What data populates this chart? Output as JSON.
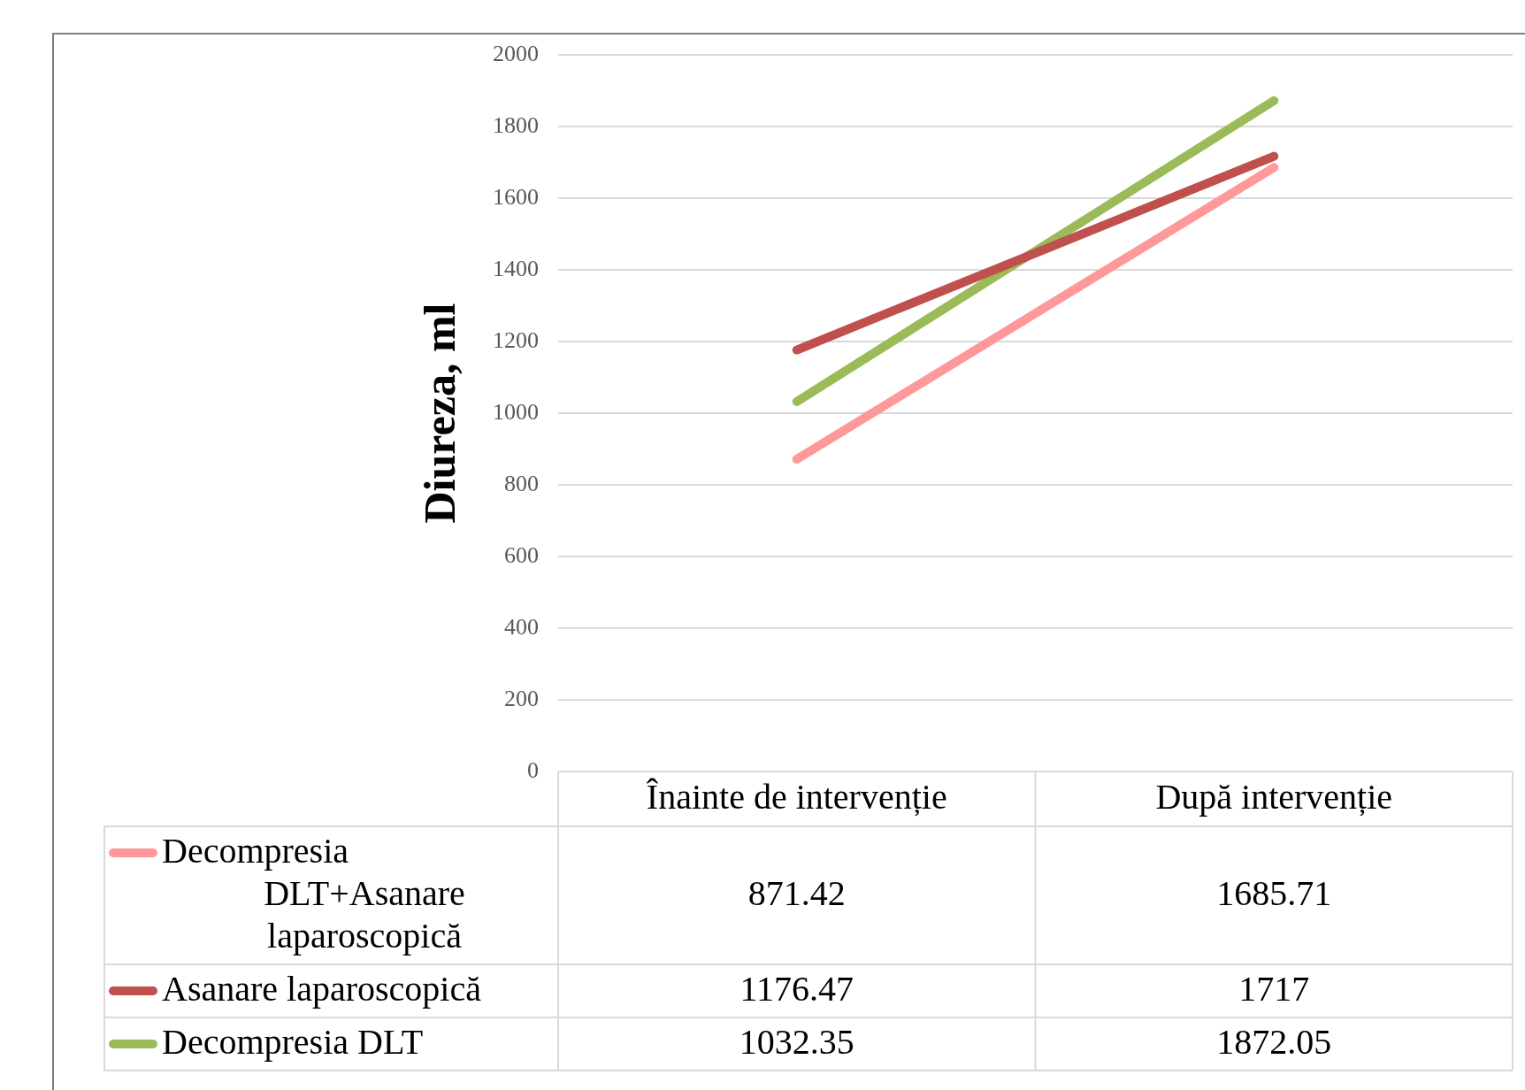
{
  "chart_data": {
    "type": "line",
    "ylabel": "Diureza, ml",
    "categories": [
      "Înainte de intervenție",
      "După intervenție"
    ],
    "series": [
      {
        "name": "Decompresia DLT+Asanare laparoscopică",
        "color": "#ff9999",
        "values": [
          871.42,
          1685.71
        ]
      },
      {
        "name": "Asanare laparoscopică",
        "color": "#c0504d",
        "values": [
          1176.47,
          1717
        ]
      },
      {
        "name": "Decompresia DLT",
        "color": "#9bbb59",
        "values": [
          1032.35,
          1872.05
        ]
      }
    ],
    "ylim": [
      0,
      2000
    ],
    "yticks": [
      0,
      200,
      400,
      600,
      800,
      1000,
      1200,
      1400,
      1600,
      1800,
      2000
    ],
    "grid": "y",
    "legend": "bottom",
    "data_labels": true,
    "marker": "none",
    "line_style": "solid"
  }
}
